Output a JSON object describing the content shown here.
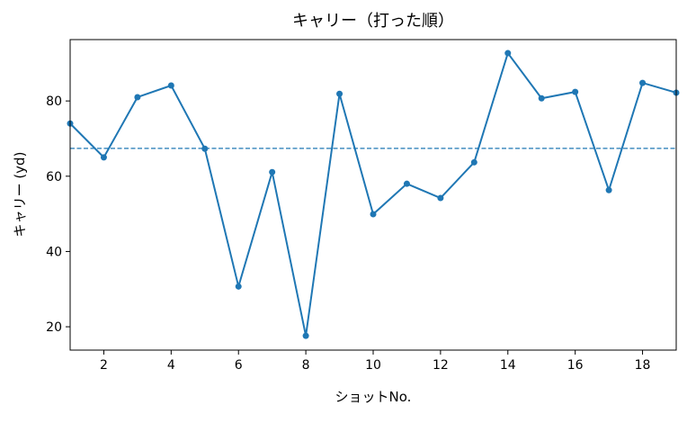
{
  "chart_data": {
    "type": "line",
    "title": "キャリー（打った順）",
    "xlabel": "ショットNo.",
    "ylabel": "キャリー (yd)",
    "xlim": [
      1,
      19
    ],
    "ylim": [
      13.8,
      96.3
    ],
    "xticks": [
      2,
      4,
      6,
      8,
      10,
      12,
      14,
      16,
      18
    ],
    "yticks": [
      20,
      40,
      60,
      80
    ],
    "grid": false,
    "color": "#1f77b4",
    "series": [
      {
        "x": [
          1,
          2,
          3,
          4,
          5,
          6,
          7,
          8,
          9,
          10,
          11,
          12,
          13,
          14,
          15,
          16,
          17,
          18,
          19
        ],
        "y": [
          74.0,
          65.0,
          81.0,
          84.1,
          67.3,
          30.7,
          61.1,
          17.6,
          81.9,
          49.9,
          58.0,
          54.2,
          63.7,
          92.7,
          80.7,
          82.4,
          56.3,
          84.8,
          82.2
        ]
      }
    ],
    "reference_line": {
      "y": 67.4,
      "style": "dashed"
    }
  }
}
